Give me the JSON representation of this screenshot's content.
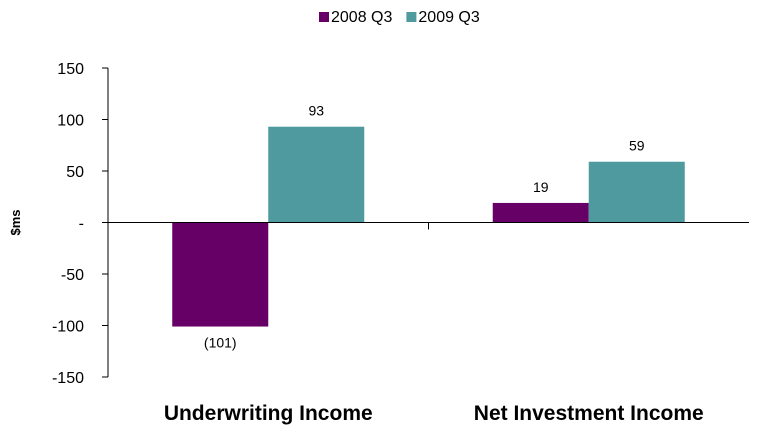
{
  "chart_data": {
    "type": "bar",
    "categories": [
      "Underwriting Income",
      "Net Investment Income"
    ],
    "series": [
      {
        "name": "2008 Q3",
        "values": [
          -101,
          19
        ],
        "labels": [
          "(101)",
          "19"
        ],
        "color": "#660066"
      },
      {
        "name": "2009 Q3",
        "values": [
          93,
          59
        ],
        "labels": [
          "93",
          "59"
        ],
        "color": "#4F9A9E"
      }
    ],
    "title": "",
    "xlabel": "",
    "ylabel": "$ms",
    "ylim": [
      -150,
      150
    ],
    "yticks": [
      150,
      100,
      50,
      0,
      -50,
      -100,
      -150
    ],
    "ytick_labels": [
      "150",
      "100",
      "50",
      "-",
      "-50",
      "-100",
      "-150"
    ],
    "legend_position": "top-center",
    "grid": false
  }
}
